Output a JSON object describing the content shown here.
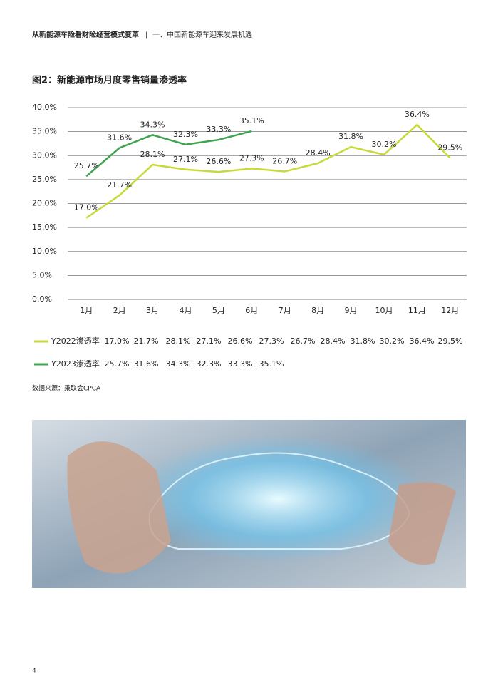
{
  "header": {
    "report_title": "从新能源车险看财险经营模式变革",
    "separator": "|",
    "section": "一、中国新能源车迎来发展机遇"
  },
  "figure_title": "图2：新能源市场月度零售销量渗透率",
  "chart_data": {
    "type": "line",
    "categories": [
      "1月",
      "2月",
      "3月",
      "4月",
      "5月",
      "6月",
      "7月",
      "8月",
      "9月",
      "10月",
      "11月",
      "12月"
    ],
    "series": [
      {
        "name": "Y2022渗透率",
        "color": "#c8da3a",
        "values": [
          17.0,
          21.7,
          28.1,
          27.1,
          26.6,
          27.3,
          26.7,
          28.4,
          31.8,
          30.2,
          36.4,
          29.5
        ],
        "value_labels": [
          "17.0%",
          "21.7%",
          "28.1%",
          "27.1%",
          "26.6%",
          "27.3%",
          "26.7%",
          "28.4%",
          "31.8%",
          "30.2%",
          "36.4%",
          "29.5%"
        ]
      },
      {
        "name": "Y2023渗透率",
        "color": "#3fa350",
        "values": [
          25.7,
          31.6,
          34.3,
          32.3,
          33.3,
          35.1,
          null,
          null,
          null,
          null,
          null,
          null
        ],
        "value_labels": [
          "25.7%",
          "31.6%",
          "34.3%",
          "32.3%",
          "33.3%",
          "35.1%",
          null,
          null,
          null,
          null,
          null,
          null
        ]
      }
    ],
    "ylim": [
      0,
      40
    ],
    "yticks": [
      {
        "value": 0,
        "label": "0.0%"
      },
      {
        "value": 5,
        "label": "5.0%"
      },
      {
        "value": 10,
        "label": "10.0%"
      },
      {
        "value": 15,
        "label": "15.0%"
      },
      {
        "value": 20,
        "label": "20.0%"
      },
      {
        "value": 25,
        "label": "25.0%"
      },
      {
        "value": 30,
        "label": "30.0%"
      },
      {
        "value": 35,
        "label": "35.0%"
      },
      {
        "value": 40,
        "label": "40.0%"
      }
    ],
    "grid": true
  },
  "source": "数据来源：乘联会CPCA",
  "page_number": "4"
}
